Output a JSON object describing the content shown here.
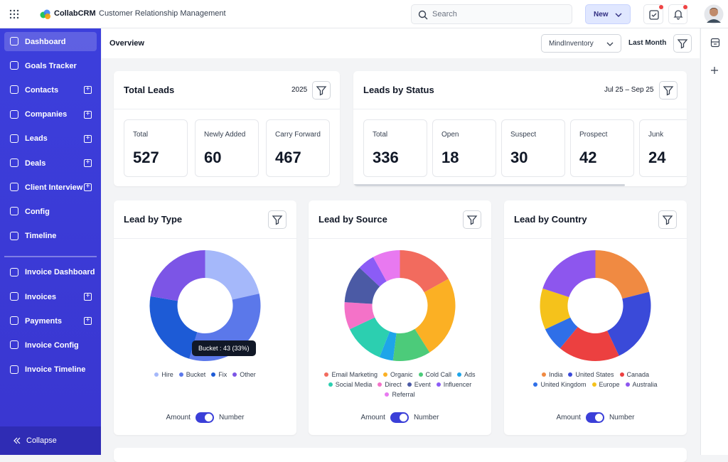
{
  "header": {
    "app_name": "CollabCRM",
    "app_subtitle": "Customer Relationship Management",
    "search_placeholder": "Search",
    "new_button": "New"
  },
  "sidebar": {
    "sections": [
      [
        {
          "label": "Dashboard",
          "active": true,
          "addable": false
        },
        {
          "label": "Goals Tracker",
          "active": false,
          "addable": false
        },
        {
          "label": "Contacts",
          "active": false,
          "addable": true
        },
        {
          "label": "Companies",
          "active": false,
          "addable": true
        },
        {
          "label": "Leads",
          "active": false,
          "addable": true
        },
        {
          "label": "Deals",
          "active": false,
          "addable": true
        },
        {
          "label": "Client Interview",
          "active": false,
          "addable": true
        },
        {
          "label": "Config",
          "active": false,
          "addable": false
        },
        {
          "label": "Timeline",
          "active": false,
          "addable": false
        }
      ],
      [
        {
          "label": "Invoice Dashboard",
          "active": false,
          "addable": false
        },
        {
          "label": "Invoices",
          "active": false,
          "addable": true
        },
        {
          "label": "Payments",
          "active": false,
          "addable": true
        },
        {
          "label": "Invoice Config",
          "active": false,
          "addable": false
        },
        {
          "label": "Invoice Timeline",
          "active": false,
          "addable": false
        }
      ]
    ],
    "collapse": "Collapse"
  },
  "toolbar": {
    "title": "Overview",
    "workspace": "MindInventory",
    "period": "Last Month"
  },
  "total_leads": {
    "title": "Total Leads",
    "year": "2025",
    "stats": [
      {
        "label": "Total",
        "value": 527
      },
      {
        "label": "Newly Added",
        "value": 60
      },
      {
        "label": "Carry Forward",
        "value": 467
      }
    ]
  },
  "leads_by_status": {
    "title": "Leads by Status",
    "range": "Jul 25 – Sep 25",
    "stats": [
      {
        "label": "Total",
        "value": 336
      },
      {
        "label": "Open",
        "value": 18
      },
      {
        "label": "Suspect",
        "value": 30
      },
      {
        "label": "Prospect",
        "value": 42
      },
      {
        "label": "Junk",
        "value": 24
      }
    ]
  },
  "chart_data": [
    {
      "type": "pie",
      "title": "Lead by Type",
      "categories": [
        "Hire",
        "Bucket",
        "Fix",
        "Other"
      ],
      "values": [
        28,
        43,
        30,
        29
      ],
      "colors": [
        "#a5b8fa",
        "#5b78ea",
        "#1d5bd6",
        "#7c55e6"
      ],
      "tooltip": "Bucket : 43 (33%)",
      "toggle_off": "Amount",
      "toggle_on": "Number"
    },
    {
      "type": "pie",
      "title": "Lead by Source",
      "categories": [
        "Email Marketing",
        "Organic",
        "Cold Call",
        "Ads",
        "Social Media",
        "Direct",
        "Event",
        "Influencer",
        "Referral"
      ],
      "values": [
        17,
        24,
        11,
        4,
        12,
        8,
        11,
        5,
        8
      ],
      "colors": [
        "#f26b5e",
        "#fbb024",
        "#4ccb7a",
        "#1ea5e9",
        "#2ccfb0",
        "#f472c8",
        "#4b5aa5",
        "#8b5cf6",
        "#e879f0"
      ],
      "toggle_off": "Amount",
      "toggle_on": "Number"
    },
    {
      "type": "pie",
      "title": "Lead by Country",
      "categories": [
        "India",
        "United States",
        "Canada",
        "United Kingdom",
        "Europe",
        "Australia"
      ],
      "values": [
        21,
        22,
        18,
        7,
        12,
        20
      ],
      "colors": [
        "#f08a42",
        "#3a4ad9",
        "#ec4040",
        "#2f6fe8",
        "#f5c21b",
        "#8d56ee"
      ],
      "toggle_off": "Amount",
      "toggle_on": "Number"
    }
  ]
}
